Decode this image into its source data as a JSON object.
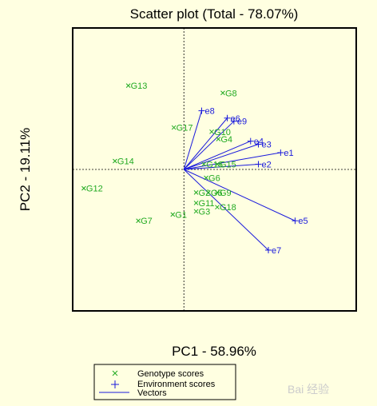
{
  "chart_data": {
    "type": "scatter",
    "title": "Scatter plot (Total - 78.07%)",
    "xlabel": "PC1 - 58.96%",
    "ylabel": "PC2 - 19.11%",
    "xlim": [
      -10,
      15.5
    ],
    "ylim": [
      -13.5,
      13.5
    ],
    "grid": false,
    "legend_position": "bottom-center",
    "colors": {
      "genotype": "#22aa22",
      "environment": "#1a1adc",
      "frame": "#000000",
      "background": "#ffffe1"
    },
    "series": [
      {
        "name": "Genotype scores",
        "marker": "x",
        "points": [
          {
            "label": "G13",
            "x": -5.0,
            "y": 8.0
          },
          {
            "label": "G8",
            "x": 3.5,
            "y": 7.3
          },
          {
            "label": "G17",
            "x": -0.9,
            "y": 4.0
          },
          {
            "label": "G10",
            "x": 2.5,
            "y": 3.6
          },
          {
            "label": "G4",
            "x": 3.1,
            "y": 2.9
          },
          {
            "label": "G14",
            "x": -6.2,
            "y": 0.8
          },
          {
            "label": "G16",
            "x": 1.8,
            "y": 0.5
          },
          {
            "label": "G15",
            "x": 3.0,
            "y": 0.5
          },
          {
            "label": "G12",
            "x": -9.0,
            "y": -1.8
          },
          {
            "label": "G6",
            "x": 2.0,
            "y": -0.8
          },
          {
            "label": "G2",
            "x": 1.1,
            "y": -2.2
          },
          {
            "label": "G5",
            "x": 2.2,
            "y": -2.2
          },
          {
            "label": "G9",
            "x": 3.0,
            "y": -2.2
          },
          {
            "label": "G11",
            "x": 1.1,
            "y": -3.2
          },
          {
            "label": "G18",
            "x": 3.0,
            "y": -3.6
          },
          {
            "label": "G3",
            "x": 1.1,
            "y": -4.0
          },
          {
            "label": "G1",
            "x": -1.0,
            "y": -4.3
          },
          {
            "label": "G7",
            "x": -4.1,
            "y": -4.9
          }
        ]
      },
      {
        "name": "Environment scores",
        "marker": "+",
        "points": [
          {
            "label": "e8",
            "x": 1.6,
            "y": 5.6
          },
          {
            "label": "e6",
            "x": 3.9,
            "y": 4.9
          },
          {
            "label": "e9",
            "x": 4.5,
            "y": 4.6
          },
          {
            "label": "e4",
            "x": 6.0,
            "y": 2.7
          },
          {
            "label": "e3",
            "x": 6.7,
            "y": 2.4
          },
          {
            "label": "e1",
            "x": 8.7,
            "y": 1.6
          },
          {
            "label": "e2",
            "x": 6.7,
            "y": 0.5
          },
          {
            "label": "e5",
            "x": 10.0,
            "y": -4.9
          },
          {
            "label": "e7",
            "x": 7.6,
            "y": -7.7
          }
        ]
      },
      {
        "name": "Vectors",
        "marker": "line",
        "from": [
          0,
          0
        ],
        "to": "Environment scores"
      }
    ]
  },
  "watermark": "Bai 经验"
}
